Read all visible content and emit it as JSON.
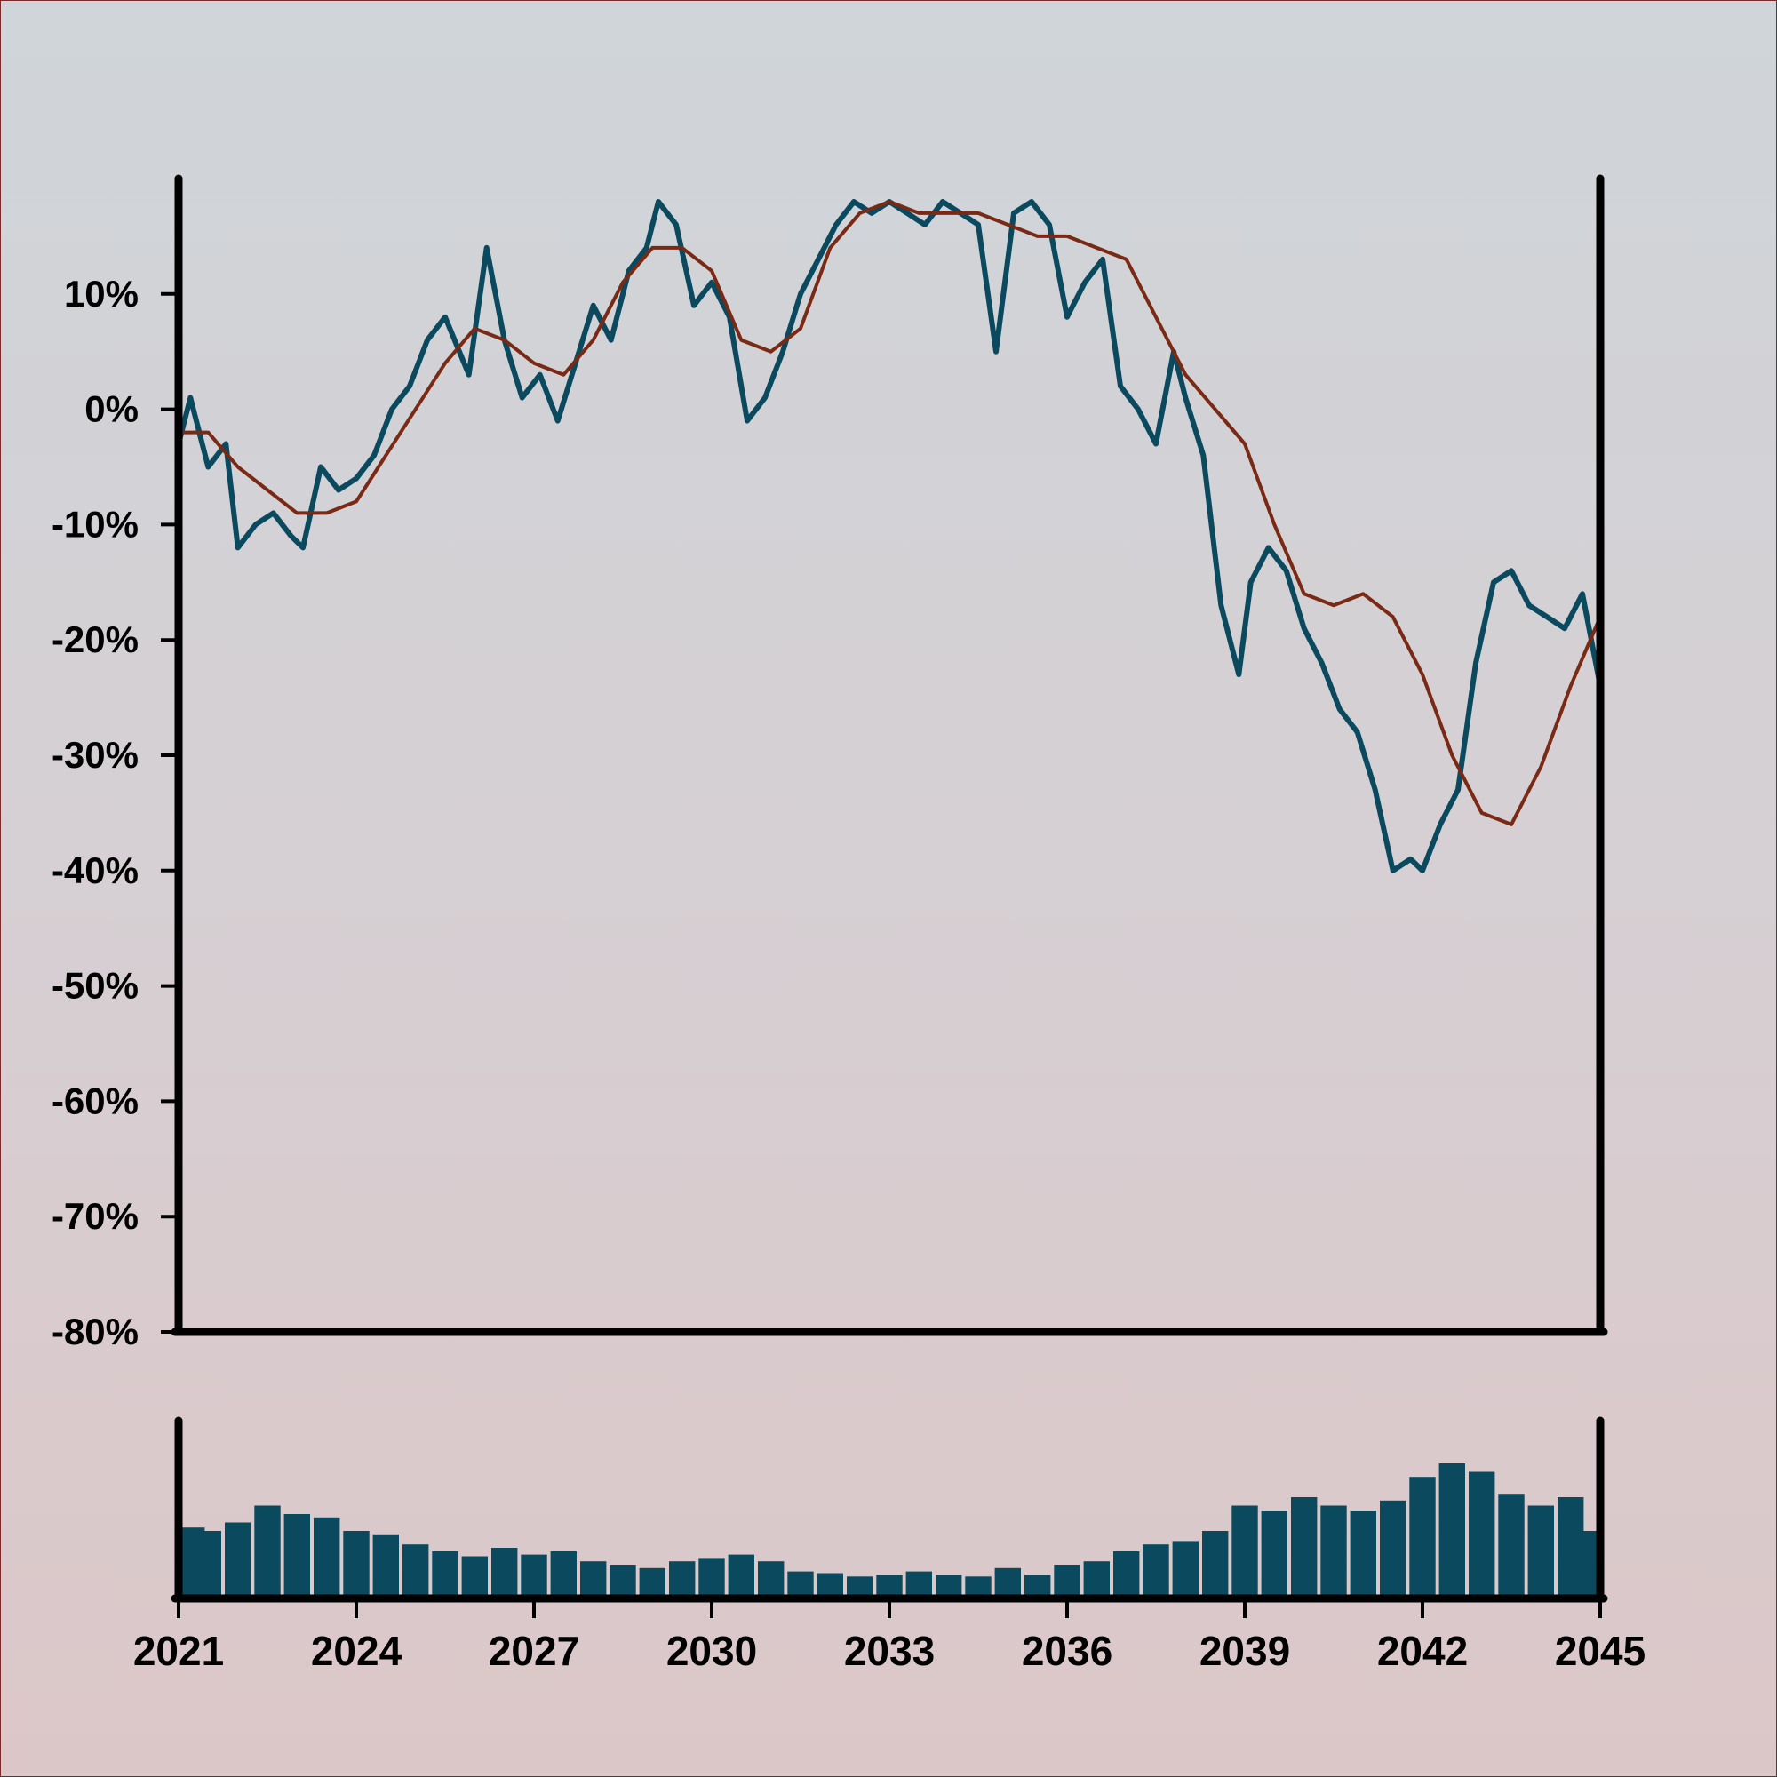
{
  "chart_data": [
    {
      "type": "line",
      "title": "",
      "xlabel": "",
      "ylabel": "",
      "xlim": [
        2021,
        2045
      ],
      "ylim": [
        -80,
        20
      ],
      "y_ticks": [
        10,
        0,
        -10,
        -20,
        -30,
        -40,
        -50,
        -60,
        -70,
        -80
      ],
      "y_tick_labels": [
        "10%",
        "0%",
        "-10%",
        "-20%",
        "-30%",
        "-40%",
        "-50%",
        "-60%",
        "-70%",
        "-80%"
      ],
      "grid": false,
      "legend": "none",
      "series": [
        {
          "color": "#0b4a5e",
          "x": [
            2021.0,
            2021.2,
            2021.5,
            2021.8,
            2022.0,
            2022.3,
            2022.6,
            2022.9,
            2023.1,
            2023.4,
            2023.7,
            2024.0,
            2024.3,
            2024.6,
            2024.9,
            2025.2,
            2025.5,
            2025.9,
            2026.2,
            2026.5,
            2026.8,
            2027.1,
            2027.4,
            2027.7,
            2028.0,
            2028.3,
            2028.6,
            2028.9,
            2029.1,
            2029.4,
            2029.7,
            2030.0,
            2030.3,
            2030.6,
            2030.9,
            2031.2,
            2031.5,
            2031.8,
            2032.1,
            2032.4,
            2032.7,
            2033.0,
            2033.3,
            2033.6,
            2033.9,
            2034.2,
            2034.5,
            2034.8,
            2035.1,
            2035.4,
            2035.7,
            2036.0,
            2036.3,
            2036.6,
            2036.9,
            2037.2,
            2037.5,
            2037.8,
            2038.0,
            2038.3,
            2038.6,
            2038.9,
            2039.1,
            2039.4,
            2039.7,
            2040.0,
            2040.3,
            2040.6,
            2040.9,
            2041.2,
            2041.5,
            2041.8,
            2042.0,
            2042.3,
            2042.6,
            2042.9,
            2043.2,
            2043.5,
            2043.8,
            2044.1,
            2044.4,
            2044.7,
            2045.0
          ],
          "values": [
            -3,
            1,
            -5,
            -3,
            -12,
            -10,
            -9,
            -11,
            -12,
            -5,
            -7,
            -6,
            -4,
            0,
            2,
            6,
            8,
            3,
            14,
            6,
            1,
            3,
            -1,
            4,
            9,
            6,
            12,
            14,
            18,
            16,
            9,
            11,
            8,
            -1,
            1,
            5,
            10,
            13,
            16,
            18,
            17,
            18,
            17,
            16,
            18,
            17,
            16,
            5,
            17,
            18,
            16,
            8,
            11,
            13,
            2,
            0,
            -3,
            5,
            1,
            -4,
            -17,
            -23,
            -15,
            -12,
            -14,
            -19,
            -22,
            -26,
            -28,
            -33,
            -40,
            -39,
            -40,
            -36,
            -33,
            -22,
            -15,
            -14,
            -17,
            -18,
            -19,
            -16,
            -24
          ]
        },
        {
          "color": "#7a2a14",
          "x": [
            2021.0,
            2021.5,
            2022.0,
            2022.5,
            2023.0,
            2023.5,
            2024.0,
            2024.5,
            2025.0,
            2025.5,
            2026.0,
            2026.5,
            2027.0,
            2027.5,
            2028.0,
            2028.5,
            2029.0,
            2029.5,
            2030.0,
            2030.5,
            2031.0,
            2031.5,
            2032.0,
            2032.5,
            2033.0,
            2033.5,
            2034.0,
            2034.5,
            2035.0,
            2035.5,
            2036.0,
            2036.5,
            2037.0,
            2037.5,
            2038.0,
            2038.5,
            2039.0,
            2039.5,
            2040.0,
            2040.5,
            2041.0,
            2041.5,
            2042.0,
            2042.5,
            2043.0,
            2043.5,
            2044.0,
            2044.5,
            2045.0
          ],
          "values": [
            -2,
            -2,
            -5,
            -7,
            -9,
            -9,
            -8,
            -4,
            0,
            4,
            7,
            6,
            4,
            3,
            6,
            11,
            14,
            14,
            12,
            6,
            5,
            7,
            14,
            17,
            18,
            17,
            17,
            17,
            16,
            15,
            15,
            14,
            13,
            8,
            3,
            0,
            -3,
            -10,
            -16,
            -17,
            -16,
            -18,
            -23,
            -30,
            -35,
            -36,
            -31,
            -24,
            -18
          ]
        }
      ]
    },
    {
      "type": "bar",
      "xlim": [
        2021,
        2045
      ],
      "x_ticks": [
        2021,
        2024,
        2027,
        2030,
        2033,
        2036,
        2039,
        2042,
        2045
      ],
      "x_tick_labels": [
        "2021",
        "2024",
        "2027",
        "2030",
        "2033",
        "2036",
        "2039",
        "2042",
        "2045"
      ],
      "color": "#0b4a5e",
      "x": [
        2021.0,
        2021.5,
        2022.0,
        2022.5,
        2023.0,
        2023.5,
        2024.0,
        2024.5,
        2025.0,
        2025.5,
        2026.0,
        2026.5,
        2027.0,
        2027.5,
        2028.0,
        2028.5,
        2029.0,
        2029.5,
        2030.0,
        2030.5,
        2031.0,
        2031.5,
        2032.0,
        2032.5,
        2033.0,
        2033.5,
        2034.0,
        2034.5,
        2035.0,
        2035.5,
        2036.0,
        2036.5,
        2037.0,
        2037.5,
        2038.0,
        2038.5,
        2039.0,
        2039.5,
        2040.0,
        2040.5,
        2041.0,
        2041.5,
        2042.0,
        2042.5,
        2043.0,
        2043.5,
        2044.0,
        2044.5,
        2045.0
      ],
      "values": [
        0.42,
        0.4,
        0.45,
        0.55,
        0.5,
        0.48,
        0.4,
        0.38,
        0.32,
        0.28,
        0.25,
        0.3,
        0.26,
        0.28,
        0.22,
        0.2,
        0.18,
        0.22,
        0.24,
        0.26,
        0.22,
        0.16,
        0.15,
        0.13,
        0.14,
        0.16,
        0.14,
        0.13,
        0.18,
        0.14,
        0.2,
        0.22,
        0.28,
        0.32,
        0.34,
        0.4,
        0.55,
        0.52,
        0.6,
        0.55,
        0.52,
        0.58,
        0.72,
        0.8,
        0.75,
        0.62,
        0.55,
        0.6,
        0.4
      ]
    }
  ]
}
